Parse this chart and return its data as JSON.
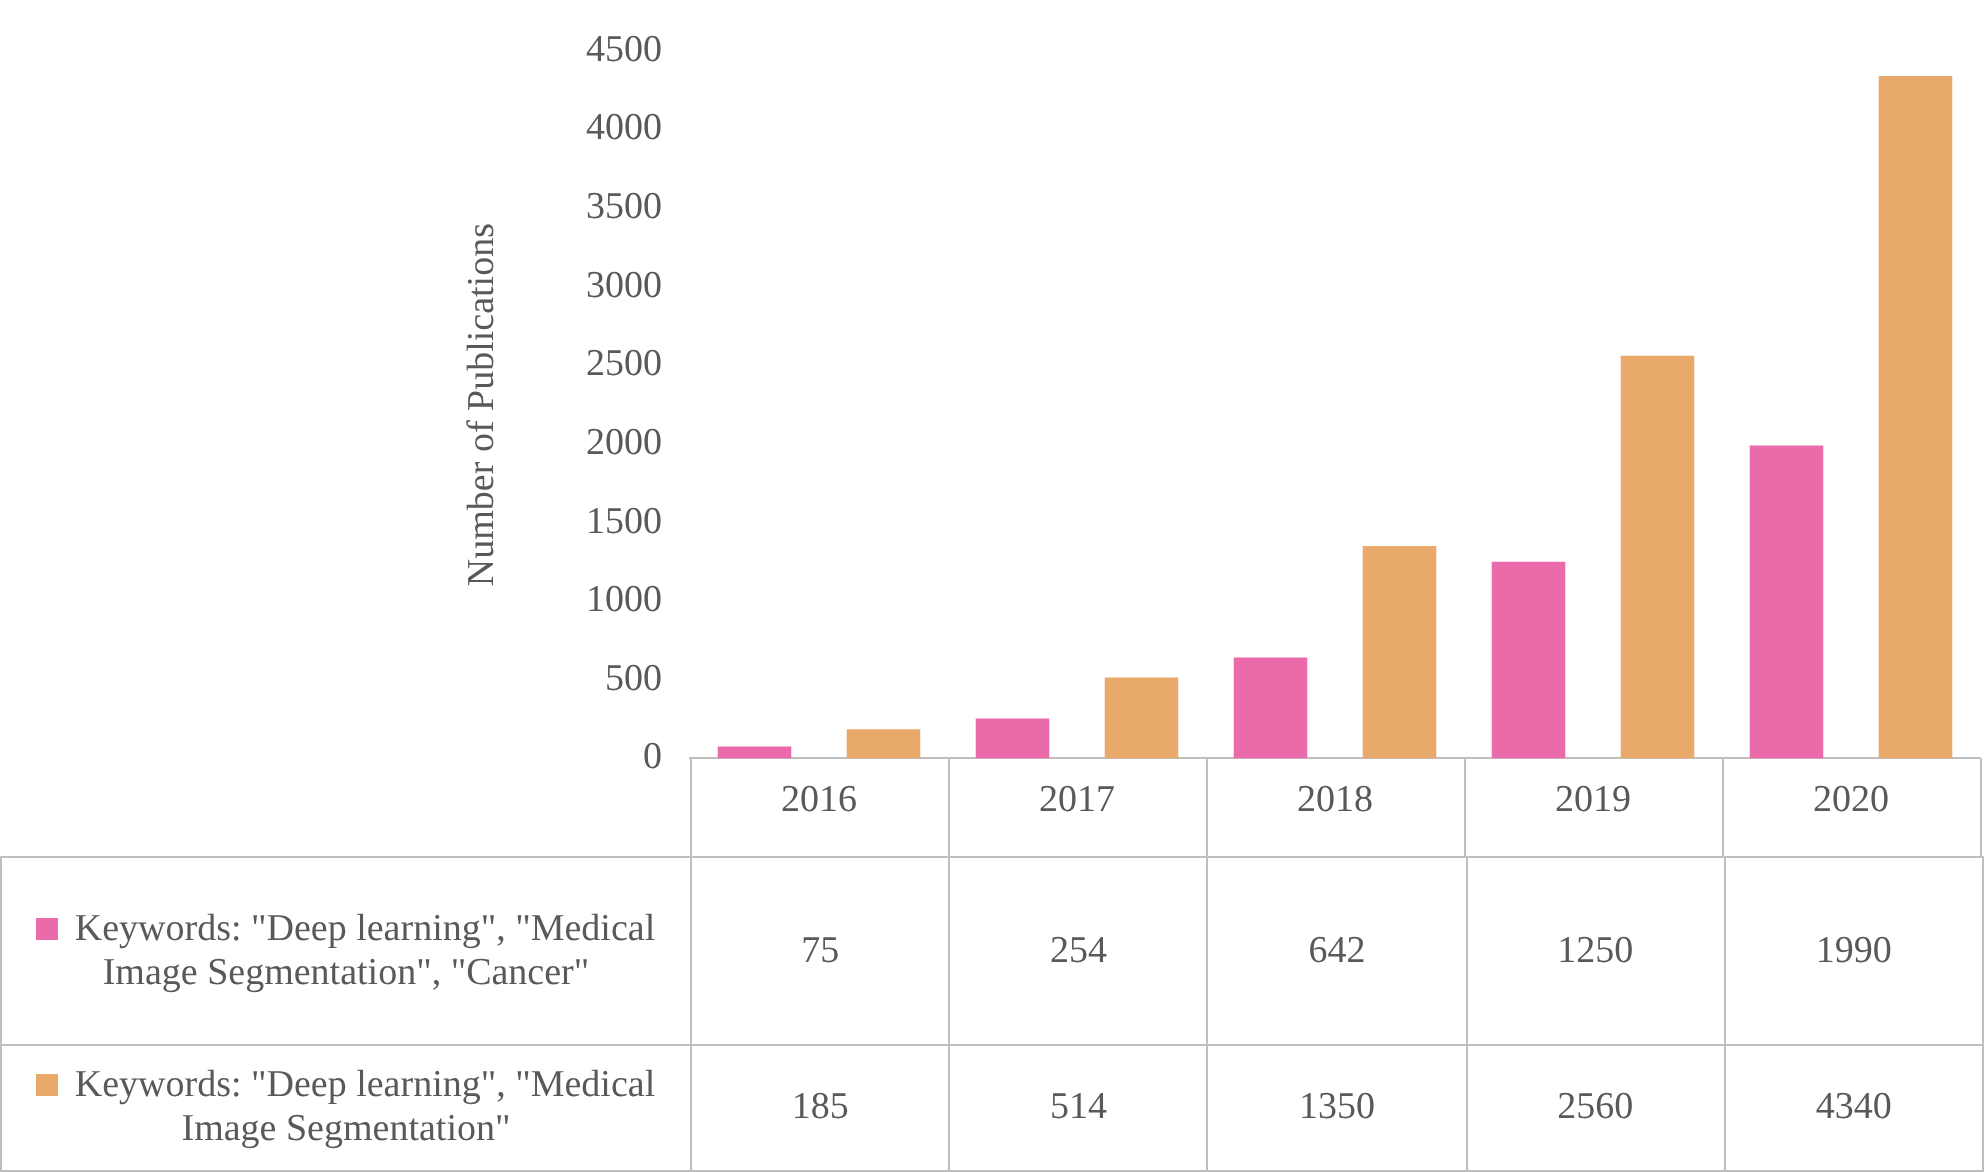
{
  "chart_data": {
    "type": "bar",
    "ylabel": "Number of Publications",
    "categories": [
      "2016",
      "2017",
      "2018",
      "2019",
      "2020"
    ],
    "series": [
      {
        "name": "Keywords: \"Deep learning\", \"Medical Image Segmentation\", \"Cancer\"",
        "color": "#ea6aaa",
        "values": [
          75,
          254,
          642,
          1250,
          1990
        ]
      },
      {
        "name": "Keywords: \"Deep learning\", \"Medical Image Segmentation\"",
        "color": "#e8a96a",
        "values": [
          185,
          514,
          1350,
          2560,
          4340
        ]
      }
    ],
    "ylim": [
      0,
      4500
    ],
    "yticks": [
      0,
      500,
      1000,
      1500,
      2000,
      2500,
      3000,
      3500,
      4000,
      4500
    ],
    "grid": false,
    "legend": "bottom",
    "data_labels": true
  }
}
